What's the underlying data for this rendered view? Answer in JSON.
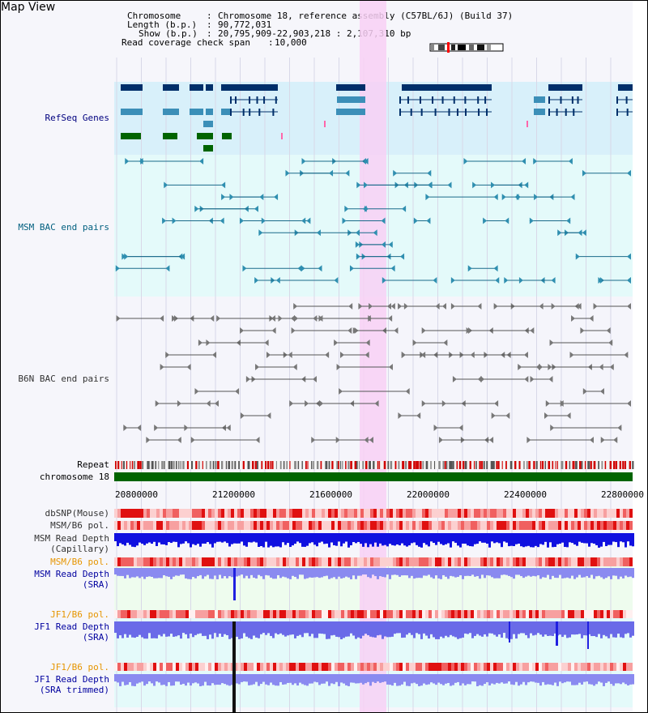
{
  "title": "Map View",
  "info": {
    "chromosome_label": "Chromosome",
    "chromosome_value": "Chromosome 18, reference assembly (C57BL/6J) (Build 37)",
    "length_label": "Length (b.p.)",
    "length_value": "90,772,031",
    "show_label": "Show (b.p.)",
    "show_value": "20,795,909-22,903,218 : 2,107,310 bp",
    "coverage_label": "Read coverage check span",
    "coverage_value": "10,000"
  },
  "tracks": {
    "refseq": "RefSeq Genes",
    "msm_bac": "MSM BAC end pairs",
    "b6n_bac": "B6N BAC end pairs",
    "repeat": "Repeat",
    "chromosome": "chromosome 18",
    "dbsnp": "dbSNP(Mouse)",
    "msm_b6_pol": "MSM/B6 pol.",
    "msm_read_depth_cap": "MSM Read Depth\n(Capillary)",
    "msm_b6_pol_2": "MSM/B6 pol.",
    "msm_read_depth_sra": "MSM Read Depth\n(SRA)",
    "jf1_b6_pol": "JF1/B6 pol.",
    "jf1_read_depth_sra": "JF1 Read Depth\n(SRA)",
    "jf1_b6_pol_2": "JF1/B6 pol.",
    "jf1_read_depth_trim": "JF1 Read Depth\n(SRA trimmed)"
  },
  "axis": {
    "ticks": [
      "20800000",
      "21200000",
      "21600000",
      "22000000",
      "22400000",
      "22800000"
    ]
  },
  "colors": {
    "refseq_label": "#00007f",
    "msm_label": "#005f7f",
    "b6n_label": "#333333",
    "pol_label": "#e69500",
    "depth_label": "#00009f",
    "highlight": "#f8d0f4",
    "chromosome_bar": "#006400"
  }
}
